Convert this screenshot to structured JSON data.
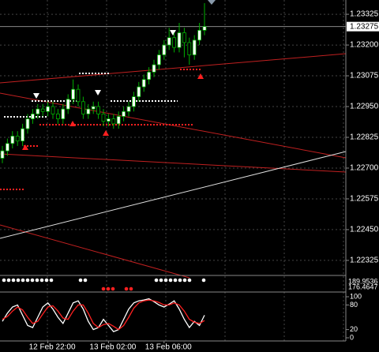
{
  "chart_data": [
    {
      "type": "candlestick",
      "categories": [
        null,
        null,
        null,
        null,
        null,
        null,
        null,
        null,
        null,
        "12 Feb 22:00",
        null,
        null,
        null,
        null,
        null,
        null,
        null,
        null,
        null,
        null,
        null,
        "13 Feb 02:00",
        null,
        null,
        null,
        null,
        null,
        null,
        null,
        null,
        null,
        null,
        "13 Feb 06:00",
        null,
        null,
        null,
        null,
        null,
        null,
        null,
        null
      ],
      "open": [
        1.2274,
        1.2277,
        1.228,
        1.2283,
        1.2281,
        1.2286,
        1.229,
        1.2292,
        1.2294,
        1.2293,
        1.2295,
        1.2292,
        1.229,
        1.2294,
        1.2298,
        1.2302,
        1.2297,
        1.2292,
        1.2294,
        1.2295,
        1.2292,
        1.2289,
        1.229,
        1.2288,
        1.2291,
        1.2293,
        1.2295,
        1.2299,
        1.2303,
        1.2306,
        1.2309,
        1.2312,
        1.2316,
        1.232,
        1.2323,
        1.2319,
        1.2325,
        1.2321,
        1.2316,
        1.2322,
        1.2326
      ],
      "high": [
        1.2279,
        1.2282,
        1.2285,
        1.2285,
        1.2288,
        1.2292,
        1.2294,
        1.2296,
        1.2296,
        1.2297,
        1.2297,
        1.2294,
        1.2296,
        1.23,
        1.2306,
        1.2304,
        1.2299,
        1.2296,
        1.2297,
        1.2297,
        1.2294,
        1.2292,
        1.2292,
        1.2293,
        1.2295,
        1.2297,
        1.2301,
        1.2305,
        1.2308,
        1.2311,
        1.2314,
        1.2318,
        1.2322,
        1.2327,
        1.2325,
        1.2329,
        1.2327,
        1.2323,
        1.2324,
        1.2329,
        1.2337
      ],
      "low": [
        1.2272,
        1.2275,
        1.2278,
        1.2279,
        1.2279,
        1.2284,
        1.2288,
        1.229,
        1.2291,
        1.2291,
        1.229,
        1.2288,
        1.2288,
        1.2292,
        1.2296,
        1.2295,
        1.229,
        1.229,
        1.2292,
        1.229,
        1.2287,
        1.2287,
        1.2286,
        1.2286,
        1.2289,
        1.2291,
        1.2293,
        1.2297,
        1.2301,
        1.2304,
        1.2307,
        1.231,
        1.2314,
        1.2318,
        1.2317,
        1.2317,
        1.2315,
        1.2312,
        1.2314,
        1.232,
        1.2324
      ],
      "close": [
        1.2277,
        1.228,
        1.2283,
        1.2281,
        1.2286,
        1.229,
        1.2292,
        1.2294,
        1.2293,
        1.2295,
        1.2292,
        1.229,
        1.2294,
        1.2298,
        1.2302,
        1.2297,
        1.2292,
        1.2294,
        1.2295,
        1.2292,
        1.2289,
        1.229,
        1.2288,
        1.2291,
        1.2293,
        1.2295,
        1.2299,
        1.2303,
        1.2306,
        1.2309,
        1.2312,
        1.2316,
        1.232,
        1.2323,
        1.2319,
        1.2325,
        1.2321,
        1.2316,
        1.2322,
        1.2326,
        1.23275
      ],
      "up_color": "#ffffff",
      "down_color": "#000000",
      "wick_color": "#00b000",
      "ylim": [
        1.22267,
        1.23383
      ],
      "yticks": [
        1.23325,
        {
          "value": 1.232,
          "label": "1.23200"
        },
        1.23075,
        {
          "value": 1.2295,
          "label": "1.22950"
        },
        1.22825,
        {
          "value": 1.227,
          "label": "1.22700"
        },
        1.22575,
        {
          "value": 1.2245,
          "label": "1.22450"
        },
        1.22325
      ],
      "current_price": 1.23275,
      "grid": true
    },
    {
      "type": "line",
      "series": [
        {
          "color": "#ffffff",
          "values": [
            40,
            60,
            75,
            80,
            55,
            30,
            25,
            50,
            75,
            85,
            70,
            50,
            35,
            60,
            85,
            90,
            70,
            40,
            20,
            25,
            45,
            30,
            15,
            20,
            45,
            70,
            85,
            90,
            92,
            95,
            88,
            80,
            75,
            82,
            90,
            70,
            45,
            25,
            40,
            30,
            55
          ]
        },
        {
          "color": "#ff2020",
          "values": [
            45,
            52,
            65,
            75,
            68,
            50,
            35,
            40,
            58,
            75,
            78,
            65,
            48,
            45,
            65,
            80,
            80,
            60,
            35,
            25,
            32,
            35,
            28,
            20,
            30,
            50,
            72,
            85,
            90,
            92,
            90,
            86,
            80,
            80,
            85,
            80,
            65,
            45,
            38,
            35,
            42
          ]
        }
      ],
      "ylim": [
        0,
        100
      ],
      "yticks": [
        100,
        80,
        20,
        0
      ]
    }
  ],
  "indicator_panel": {
    "yticks": [
      189.9536,
      176.4647
    ]
  }
}
